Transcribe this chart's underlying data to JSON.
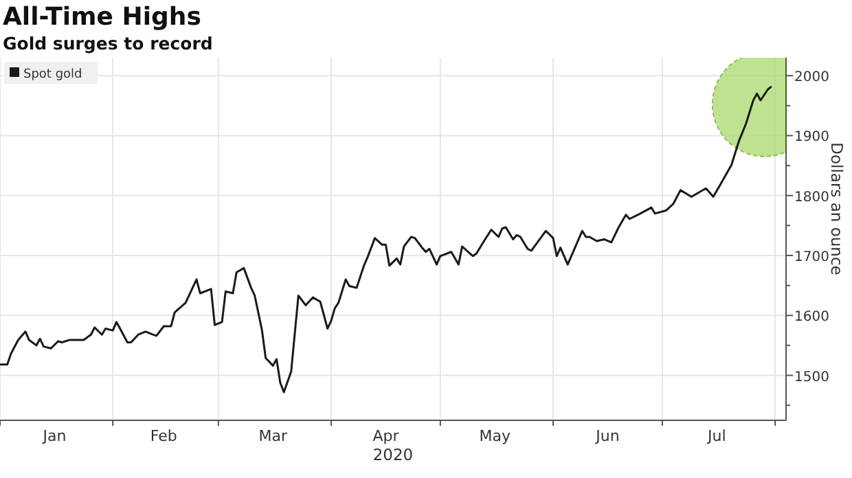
{
  "chart_data": {
    "type": "line",
    "title": "All-Time Highs",
    "subtitle": "Gold surges to record",
    "xlabel": "2020",
    "ylabel": "Dollars an ounce",
    "x": [
      "2020-01-01",
      "2020-01-03",
      "2020-01-04",
      "2020-01-06",
      "2020-01-08",
      "2020-01-09",
      "2020-01-11",
      "2020-01-12",
      "2020-01-13",
      "2020-01-15",
      "2020-01-17",
      "2020-01-18",
      "2020-01-20",
      "2020-01-22",
      "2020-01-24",
      "2020-01-26",
      "2020-01-27",
      "2020-01-29",
      "2020-01-30",
      "2020-02-01",
      "2020-02-02",
      "2020-02-03",
      "2020-02-05",
      "2020-02-06",
      "2020-02-08",
      "2020-02-10",
      "2020-02-12",
      "2020-02-13",
      "2020-02-15",
      "2020-02-17",
      "2020-02-18",
      "2020-02-21",
      "2020-02-24",
      "2020-02-25",
      "2020-02-28",
      "2020-02-29",
      "2020-03-02",
      "2020-03-03",
      "2020-03-05",
      "2020-03-06",
      "2020-03-08",
      "2020-03-10",
      "2020-03-11",
      "2020-03-13",
      "2020-03-14",
      "2020-03-16",
      "2020-03-17",
      "2020-03-18",
      "2020-03-19",
      "2020-03-21",
      "2020-03-23",
      "2020-03-25",
      "2020-03-27",
      "2020-03-29",
      "2020-03-31",
      "2020-04-01",
      "2020-04-02",
      "2020-04-03",
      "2020-04-05",
      "2020-04-06",
      "2020-04-08",
      "2020-04-10",
      "2020-04-11",
      "2020-04-13",
      "2020-04-15",
      "2020-04-16",
      "2020-04-17",
      "2020-04-19",
      "2020-04-20",
      "2020-04-21",
      "2020-04-23",
      "2020-04-24",
      "2020-04-26",
      "2020-04-27",
      "2020-04-28",
      "2020-04-30",
      "2020-05-01",
      "2020-05-04",
      "2020-05-06",
      "2020-05-07",
      "2020-05-09",
      "2020-05-10",
      "2020-05-11",
      "2020-05-13",
      "2020-05-15",
      "2020-05-17",
      "2020-05-18",
      "2020-05-19",
      "2020-05-21",
      "2020-05-22",
      "2020-05-23",
      "2020-05-25",
      "2020-05-26",
      "2020-05-30",
      "2020-06-01",
      "2020-06-02",
      "2020-06-03",
      "2020-06-05",
      "2020-06-09",
      "2020-06-10",
      "2020-06-11",
      "2020-06-13",
      "2020-06-15",
      "2020-06-17",
      "2020-06-19",
      "2020-06-21",
      "2020-06-22",
      "2020-06-25",
      "2020-06-28",
      "2020-06-29",
      "2020-07-02",
      "2020-07-04",
      "2020-07-06",
      "2020-07-09",
      "2020-07-13",
      "2020-07-15",
      "2020-07-17",
      "2020-07-20",
      "2020-07-22",
      "2020-07-24",
      "2020-07-26",
      "2020-07-27",
      "2020-07-28",
      "2020-07-30",
      "2020-07-31"
    ],
    "series": [
      {
        "name": "Spot gold",
        "color": "#1a1a1a",
        "values": [
          1518,
          1518,
          1536,
          1559,
          1573,
          1559,
          1550,
          1561,
          1548,
          1545,
          1557,
          1555,
          1559,
          1559,
          1559,
          1568,
          1580,
          1568,
          1578,
          1575,
          1589,
          1578,
          1555,
          1555,
          1568,
          1573,
          1568,
          1566,
          1582,
          1582,
          1605,
          1621,
          1660,
          1637,
          1644,
          1584,
          1589,
          1640,
          1637,
          1672,
          1679,
          1646,
          1633,
          1575,
          1529,
          1516,
          1527,
          1488,
          1472,
          1506,
          1633,
          1617,
          1630,
          1623,
          1578,
          1591,
          1612,
          1621,
          1660,
          1649,
          1646,
          1683,
          1697,
          1729,
          1718,
          1718,
          1683,
          1695,
          1685,
          1715,
          1731,
          1729,
          1713,
          1706,
          1711,
          1685,
          1699,
          1706,
          1685,
          1715,
          1704,
          1699,
          1704,
          1724,
          1743,
          1731,
          1745,
          1747,
          1727,
          1734,
          1731,
          1711,
          1708,
          1741,
          1729,
          1699,
          1713,
          1685,
          1741,
          1731,
          1731,
          1724,
          1727,
          1722,
          1747,
          1768,
          1761,
          1770,
          1780,
          1770,
          1775,
          1786,
          1809,
          1798,
          1812,
          1798,
          1819,
          1851,
          1890,
          1920,
          1959,
          1970,
          1959,
          1977,
          1982
        ]
      }
    ],
    "xlim": [
      "2020-01-01",
      "2020-08-04"
    ],
    "xticks": [
      {
        "value": "2020-01-01",
        "label": null
      },
      {
        "value": "2020-01-16",
        "label": "Jan"
      },
      {
        "value": "2020-02-01",
        "label": null
      },
      {
        "value": "2020-02-15",
        "label": "Feb"
      },
      {
        "value": "2020-03-01",
        "label": null
      },
      {
        "value": "2020-03-16",
        "label": "Mar"
      },
      {
        "value": "2020-04-01",
        "label": null
      },
      {
        "value": "2020-04-16",
        "label": "Apr"
      },
      {
        "value": "2020-05-01",
        "label": null
      },
      {
        "value": "2020-05-16",
        "label": "May"
      },
      {
        "value": "2020-06-01",
        "label": null
      },
      {
        "value": "2020-06-16",
        "label": "Jun"
      },
      {
        "value": "2020-07-01",
        "label": null
      },
      {
        "value": "2020-07-16",
        "label": "Jul"
      },
      {
        "value": "2020-08-01",
        "label": null
      }
    ],
    "ylim": [
      1425,
      2030
    ],
    "yticks": [
      {
        "value": 1450,
        "label": null
      },
      1500,
      {
        "value": 1550,
        "label": null
      },
      1600,
      {
        "value": 1650,
        "label": null
      },
      1700,
      {
        "value": 1750,
        "label": null
      },
      1800,
      {
        "value": 1850,
        "label": null
      },
      1900,
      {
        "value": 1950,
        "label": null
      },
      2000
    ],
    "grid": true,
    "legend": "top left",
    "line_style": "solid",
    "marker": "none"
  }
}
